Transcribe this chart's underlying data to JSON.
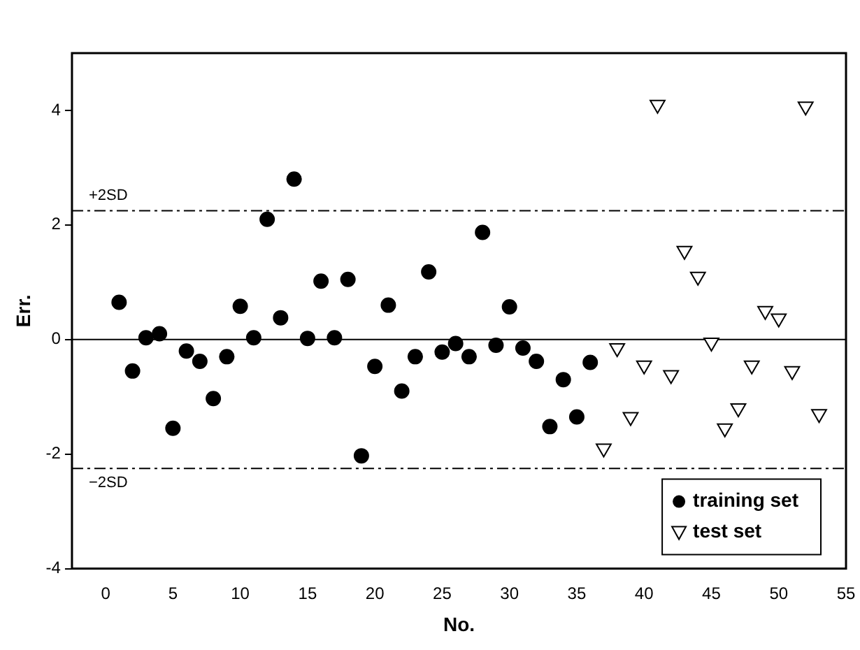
{
  "chart_data": {
    "type": "scatter",
    "xlabel": "No.",
    "ylabel": "Err.",
    "xlim": [
      -2.5,
      55
    ],
    "xticks": [
      0,
      5,
      10,
      15,
      20,
      25,
      30,
      35,
      40,
      45,
      50,
      55
    ],
    "ylim": [
      -4,
      5
    ],
    "yticks": [
      -4,
      -2,
      0,
      2,
      4
    ],
    "grid": false,
    "legend": "bottom right",
    "series": [
      {
        "name": "training set",
        "color": "#000000",
        "marker": "circle",
        "x": [
          1,
          2,
          3,
          4,
          5,
          6,
          7,
          8,
          9,
          10,
          11,
          12,
          13,
          14,
          15,
          16,
          17,
          18,
          19,
          20,
          21,
          22,
          23,
          24,
          25,
          26,
          27,
          28,
          29,
          30,
          31,
          32,
          33,
          34,
          35,
          36
        ],
        "values": [
          0.65,
          -0.55,
          0.03,
          0.1,
          -1.55,
          -0.2,
          -0.38,
          -1.03,
          -0.3,
          0.58,
          0.03,
          2.1,
          0.38,
          2.8,
          0.02,
          1.02,
          0.03,
          1.05,
          -2.03,
          -0.47,
          0.6,
          -0.9,
          -0.3,
          1.18,
          -0.22,
          -0.07,
          -0.3,
          1.87,
          -0.1,
          0.57,
          -0.15,
          -0.38,
          -1.52,
          -0.7,
          -1.35,
          -0.4
        ]
      },
      {
        "name": "test set",
        "color": "#000000",
        "marker": "triangle",
        "x": [
          37,
          38,
          39,
          40,
          41,
          42,
          43,
          44,
          45,
          46,
          47,
          48,
          49,
          50,
          51,
          52,
          53
        ],
        "values": [
          -1.9,
          -0.15,
          -1.35,
          -0.45,
          4.1,
          -0.62,
          1.55,
          1.1,
          -0.05,
          -1.55,
          -1.2,
          -0.45,
          0.5,
          0.37,
          -0.55,
          4.07,
          -1.3
        ]
      }
    ],
    "ref_lines": [
      {
        "axis": "y",
        "value": 2.25,
        "label": "+2SD",
        "line_style": "dashdot",
        "color": "#000000"
      },
      {
        "axis": "y",
        "value": -2.25,
        "label": "−2SD",
        "line_style": "dashdot",
        "color": "#000000"
      },
      {
        "axis": "y",
        "value": 0,
        "label": null,
        "line_style": "solid",
        "color": "#000000"
      }
    ]
  }
}
